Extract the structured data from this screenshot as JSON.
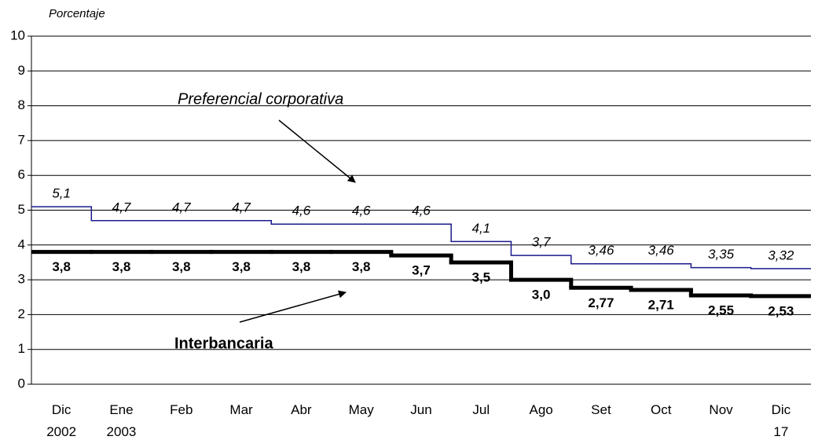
{
  "chart_data": {
    "type": "step-line",
    "y_axis_label": "Porcentaje",
    "categories": [
      "Dic\n2002",
      "Ene\n2003",
      "Feb",
      "Mar",
      "Abr",
      "May",
      "Jun",
      "Jul",
      "Ago",
      "Set",
      "Oct",
      "Nov",
      "Dic\n17"
    ],
    "series": [
      {
        "name": "Preferencial corporativa",
        "color": "#1a1a8c",
        "values": [
          5.1,
          4.7,
          4.7,
          4.7,
          4.6,
          4.6,
          4.6,
          4.1,
          3.7,
          3.46,
          3.46,
          3.35,
          3.32
        ],
        "value_labels": [
          "5,1",
          "4,7",
          "4,7",
          "4,7",
          "4,6",
          "4,6",
          "4,6",
          "4,1",
          "3,7",
          "3,46",
          "3,46",
          "3,35",
          "3,32"
        ]
      },
      {
        "name": "Interbancaria",
        "color": "#000000",
        "values": [
          3.8,
          3.8,
          3.8,
          3.8,
          3.8,
          3.8,
          3.7,
          3.5,
          3.0,
          2.77,
          2.71,
          2.55,
          2.53
        ],
        "value_labels": [
          "3,8",
          "3,8",
          "3,8",
          "3,8",
          "3,8",
          "3,8",
          "3,7",
          "3,5",
          "3,0",
          "2,77",
          "2,71",
          "2,55",
          "2,53"
        ]
      }
    ],
    "ylim": [
      0,
      10
    ],
    "yticks": [
      0,
      1,
      2,
      3,
      4,
      5,
      6,
      7,
      8,
      9,
      10
    ],
    "grid": true
  }
}
